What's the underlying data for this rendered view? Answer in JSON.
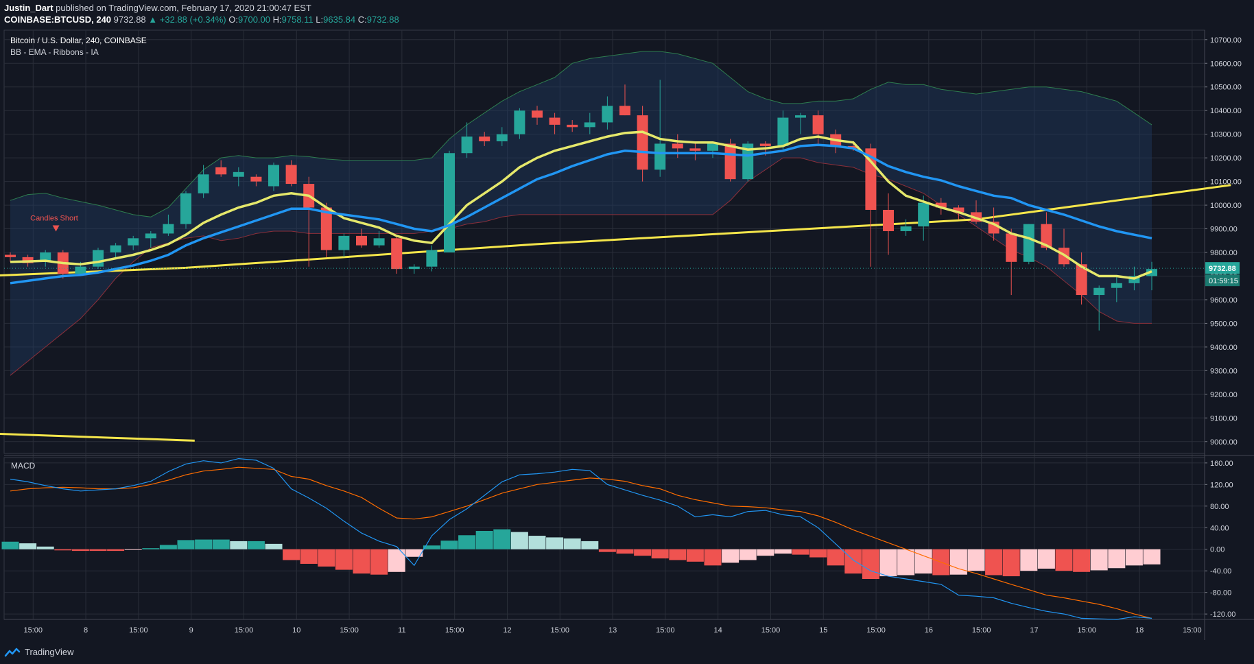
{
  "header": {
    "author": "Justin_Dart",
    "published": "published on TradingView.com, February 17, 2020 21:00:47 EST",
    "symbol": "COINBASE:BTCUSD, 240",
    "last": "9732.88",
    "change": "+32.88 (+0.34%)",
    "o_label": "O:",
    "o_val": "9700.00",
    "h_label": "H:",
    "h_val": "9758.11",
    "l_label": "L:",
    "l_val": "9635.84",
    "c_label": "C:",
    "c_val": "9732.88"
  },
  "pane": {
    "title": "Bitcoin / U.S. Dollar, 240, COINBASE",
    "indicator": "BB - EMA - Ribbons - IA",
    "annotation": "Candles Short",
    "macd_label": "MACD",
    "price_tag": "9732.88",
    "countdown_tag": "01:59:15"
  },
  "footer": {
    "brand": "TradingView"
  },
  "colors": {
    "bg": "#131722",
    "grid": "#2a2e39",
    "up": "#26a69a",
    "down": "#ef5350",
    "ema_fast": "#e5e86b",
    "ema_slow": "#2196f3",
    "trend": "#f5e64b",
    "bb_fill": "#1e3a5f",
    "bb_upper": "#2e7d4f",
    "bb_lower": "#8b2f3a",
    "macd_line": "#2196f3",
    "signal_line": "#ff6d00",
    "hist_up_strong": "#26a69a",
    "hist_up_weak": "#b2dfdb",
    "hist_down_strong": "#ef5350",
    "hist_down_weak": "#ffcdd2"
  },
  "chart_data": [
    {
      "type": "candlestick",
      "title": "Bitcoin / U.S. Dollar, 240, COINBASE",
      "x_tick_labels": [
        "15:00",
        "8",
        "15:00",
        "9",
        "15:00",
        "10",
        "15:00",
        "11",
        "15:00",
        "12",
        "15:00",
        "13",
        "15:00",
        "14",
        "15:00",
        "15",
        "15:00",
        "16",
        "15:00",
        "17",
        "15:00",
        "18",
        "15:00"
      ],
      "y_tick_labels": [
        "10700.00",
        "10600.00",
        "10500.00",
        "10400.00",
        "10300.00",
        "10200.00",
        "10100.00",
        "10000.00",
        "9900.00",
        "9800.00",
        "9700.00",
        "9600.00",
        "9500.00",
        "9400.00",
        "9300.00",
        "9200.00",
        "9100.00",
        "9000.00"
      ],
      "ylim": [
        8950,
        10740
      ],
      "candles": [
        [
          9790,
          9800,
          9760,
          9780
        ],
        [
          9780,
          9790,
          9740,
          9755
        ],
        [
          9760,
          9810,
          9740,
          9800
        ],
        [
          9800,
          9810,
          9690,
          9710
        ],
        [
          9710,
          9760,
          9700,
          9740
        ],
        [
          9740,
          9820,
          9730,
          9810
        ],
        [
          9800,
          9840,
          9780,
          9830
        ],
        [
          9830,
          9870,
          9810,
          9860
        ],
        [
          9860,
          9890,
          9820,
          9880
        ],
        [
          9880,
          9960,
          9870,
          9920
        ],
        [
          9920,
          10060,
          9900,
          10050
        ],
        [
          10050,
          10170,
          10030,
          10130
        ],
        [
          10160,
          10190,
          10120,
          10130
        ],
        [
          10120,
          10160,
          10080,
          10140
        ],
        [
          10120,
          10130,
          10080,
          10100
        ],
        [
          10080,
          10180,
          10060,
          10170
        ],
        [
          10170,
          10190,
          10080,
          10090
        ],
        [
          10090,
          10120,
          9740,
          9990
        ],
        [
          9990,
          10010,
          9780,
          9810
        ],
        [
          9810,
          9880,
          9780,
          9870
        ],
        [
          9870,
          9900,
          9820,
          9830
        ],
        [
          9830,
          9890,
          9820,
          9860
        ],
        [
          9860,
          9870,
          9710,
          9730
        ],
        [
          9730,
          9750,
          9710,
          9740
        ],
        [
          9740,
          9830,
          9720,
          9810
        ],
        [
          9800,
          10230,
          9800,
          10220
        ],
        [
          10220,
          10350,
          10200,
          10290
        ],
        [
          10290,
          10310,
          10250,
          10270
        ],
        [
          10270,
          10330,
          10250,
          10300
        ],
        [
          10300,
          10410,
          10280,
          10400
        ],
        [
          10400,
          10420,
          10340,
          10370
        ],
        [
          10370,
          10390,
          10300,
          10340
        ],
        [
          10340,
          10360,
          10310,
          10330
        ],
        [
          10330,
          10390,
          10300,
          10350
        ],
        [
          10350,
          10460,
          10320,
          10420
        ],
        [
          10420,
          10510,
          10380,
          10380
        ],
        [
          10380,
          10420,
          10100,
          10150
        ],
        [
          10150,
          10530,
          10120,
          10260
        ],
        [
          10260,
          10300,
          10200,
          10240
        ],
        [
          10240,
          10270,
          10190,
          10230
        ],
        [
          10230,
          10270,
          10200,
          10260
        ],
        [
          10260,
          10280,
          10100,
          10110
        ],
        [
          10110,
          10270,
          10100,
          10260
        ],
        [
          10260,
          10270,
          10210,
          10250
        ],
        [
          10250,
          10400,
          10230,
          10370
        ],
        [
          10370,
          10390,
          10300,
          10380
        ],
        [
          10380,
          10400,
          10250,
          10300
        ],
        [
          10300,
          10320,
          10220,
          10250
        ],
        [
          10250,
          10260,
          10230,
          10240
        ],
        [
          10240,
          10260,
          9740,
          9980
        ],
        [
          9980,
          10050,
          9790,
          9890
        ],
        [
          9890,
          9940,
          9870,
          9910
        ],
        [
          9910,
          10040,
          9850,
          10010
        ],
        [
          10010,
          10030,
          9960,
          9990
        ],
        [
          9990,
          10000,
          9940,
          9970
        ],
        [
          9970,
          10020,
          9920,
          9930
        ],
        [
          9930,
          9990,
          9850,
          9880
        ],
        [
          9880,
          9900,
          9620,
          9760
        ],
        [
          9760,
          9920,
          9750,
          9920
        ],
        [
          9920,
          9970,
          9810,
          9820
        ],
        [
          9820,
          9900,
          9740,
          9750
        ],
        [
          9750,
          9800,
          9580,
          9620
        ],
        [
          9620,
          9660,
          9470,
          9650
        ],
        [
          9650,
          9700,
          9590,
          9670
        ],
        [
          9670,
          9740,
          9640,
          9700
        ],
        [
          9700,
          9760,
          9640,
          9730
        ]
      ],
      "ema_fast": [
        9760,
        9762,
        9765,
        9755,
        9750,
        9760,
        9775,
        9790,
        9810,
        9835,
        9875,
        9925,
        9960,
        9990,
        10010,
        10040,
        10050,
        10040,
        9990,
        9945,
        9925,
        9905,
        9870,
        9850,
        9840,
        9920,
        10000,
        10050,
        10100,
        10160,
        10200,
        10230,
        10250,
        10270,
        10290,
        10305,
        10310,
        10280,
        10270,
        10265,
        10265,
        10250,
        10235,
        10240,
        10250,
        10280,
        10290,
        10275,
        10265,
        10185,
        10100,
        10040,
        10015,
        9990,
        9970,
        9945,
        9920,
        9880,
        9860,
        9830,
        9790,
        9740,
        9700,
        9700,
        9690,
        9720
      ],
      "ema_slow": [
        9670,
        9680,
        9690,
        9700,
        9705,
        9715,
        9730,
        9745,
        9765,
        9790,
        9830,
        9860,
        9885,
        9910,
        9935,
        9960,
        9985,
        9985,
        9970,
        9960,
        9950,
        9940,
        9920,
        9900,
        9890,
        9915,
        9950,
        9990,
        10030,
        10070,
        10110,
        10135,
        10165,
        10190,
        10215,
        10230,
        10225,
        10220,
        10220,
        10220,
        10220,
        10215,
        10210,
        10220,
        10230,
        10250,
        10255,
        10250,
        10240,
        10205,
        10165,
        10140,
        10120,
        10105,
        10080,
        10060,
        10040,
        10030,
        10000,
        9980,
        9960,
        9935,
        9910,
        9890,
        9875,
        9860
      ],
      "bb_upper": [
        10020,
        10045,
        10050,
        10030,
        10015,
        10000,
        9980,
        9960,
        9950,
        9990,
        10070,
        10150,
        10200,
        10210,
        10200,
        10200,
        10210,
        10205,
        10195,
        10190,
        10190,
        10190,
        10190,
        10190,
        10200,
        10280,
        10340,
        10390,
        10440,
        10480,
        10510,
        10540,
        10600,
        10620,
        10630,
        10640,
        10650,
        10650,
        10640,
        10620,
        10600,
        10540,
        10480,
        10450,
        10430,
        10430,
        10440,
        10440,
        10450,
        10490,
        10520,
        10510,
        10510,
        10490,
        10480,
        10470,
        10480,
        10490,
        10500,
        10500,
        10490,
        10480,
        10460,
        10440,
        10390,
        10340
      ],
      "bb_lower": [
        9280,
        9340,
        9400,
        9460,
        9520,
        9600,
        9690,
        9760,
        9820,
        9840,
        9860,
        9870,
        9850,
        9860,
        9880,
        9890,
        9890,
        9880,
        9880,
        9880,
        9880,
        9880,
        9880,
        9880,
        9890,
        9900,
        9920,
        9930,
        9950,
        9960,
        9960,
        9960,
        9960,
        9960,
        9960,
        9960,
        9960,
        9960,
        9960,
        9960,
        9960,
        10020,
        10100,
        10150,
        10200,
        10200,
        10180,
        10170,
        10160,
        10130,
        10110,
        10080,
        10050,
        10000,
        9960,
        9910,
        9860,
        9810,
        9780,
        9740,
        9680,
        9620,
        9550,
        9510,
        9500,
        9500
      ],
      "trendline": [
        [
          -1.5,
          9700
        ],
        [
          10,
          9735
        ],
        [
          30,
          9835
        ],
        [
          55,
          9940
        ],
        [
          69.5,
          10085
        ]
      ],
      "bottom_trendline": [
        [
          -1.5,
          9035
        ],
        [
          10.5,
          9004
        ]
      ]
    },
    {
      "type": "macd",
      "title": "MACD",
      "y_tick_labels": [
        "160.00",
        "120.00",
        "80.00",
        "40.00",
        "0.00",
        "-40.00",
        "-80.00",
        "-120.00"
      ],
      "ylim": [
        -130,
        170
      ],
      "macd": [
        130,
        125,
        118,
        112,
        108,
        110,
        112,
        118,
        126,
        144,
        158,
        164,
        160,
        168,
        165,
        150,
        112,
        95,
        76,
        52,
        30,
        15,
        5,
        -30,
        25,
        55,
        75,
        100,
        125,
        138,
        140,
        143,
        148,
        146,
        120,
        110,
        100,
        91,
        80,
        60,
        64,
        60,
        70,
        72,
        64,
        60,
        40,
        10,
        -20,
        -40,
        -50,
        -55,
        -60,
        -65,
        -85,
        -87,
        -90,
        -100,
        -108,
        -115,
        -120,
        -128,
        -129,
        -130,
        -125,
        -128
      ],
      "signal": [
        108,
        112,
        114,
        115,
        114,
        112,
        112,
        114,
        120,
        128,
        138,
        145,
        148,
        152,
        150,
        148,
        135,
        130,
        118,
        108,
        96,
        76,
        58,
        56,
        60,
        70,
        80,
        92,
        104,
        112,
        120,
        124,
        128,
        132,
        130,
        126,
        118,
        112,
        100,
        92,
        86,
        80,
        79,
        77,
        73,
        70,
        62,
        50,
        36,
        24,
        12,
        0,
        -12,
        -24,
        -36,
        -45,
        -55,
        -65,
        -75,
        -85,
        -90,
        -96,
        -102,
        -110,
        -120,
        -128
      ],
      "histogram": [
        14,
        11,
        5,
        -2,
        -3,
        -3,
        -3,
        -1,
        2,
        8,
        17,
        18,
        18,
        15,
        15,
        10,
        -20,
        -27,
        -32,
        -38,
        -45,
        -47,
        -42,
        -14,
        7,
        16,
        26,
        34,
        37,
        32,
        25,
        22,
        20,
        15,
        -5,
        -8,
        -12,
        -17,
        -20,
        -23,
        -30,
        -25,
        -20,
        -12,
        -8,
        -10,
        -15,
        -30,
        -45,
        -55,
        -50,
        -48,
        -45,
        -48,
        -47,
        -40,
        -48,
        -50,
        -40,
        -36,
        -40,
        -42,
        -39,
        -35,
        -30,
        -28
      ]
    }
  ]
}
